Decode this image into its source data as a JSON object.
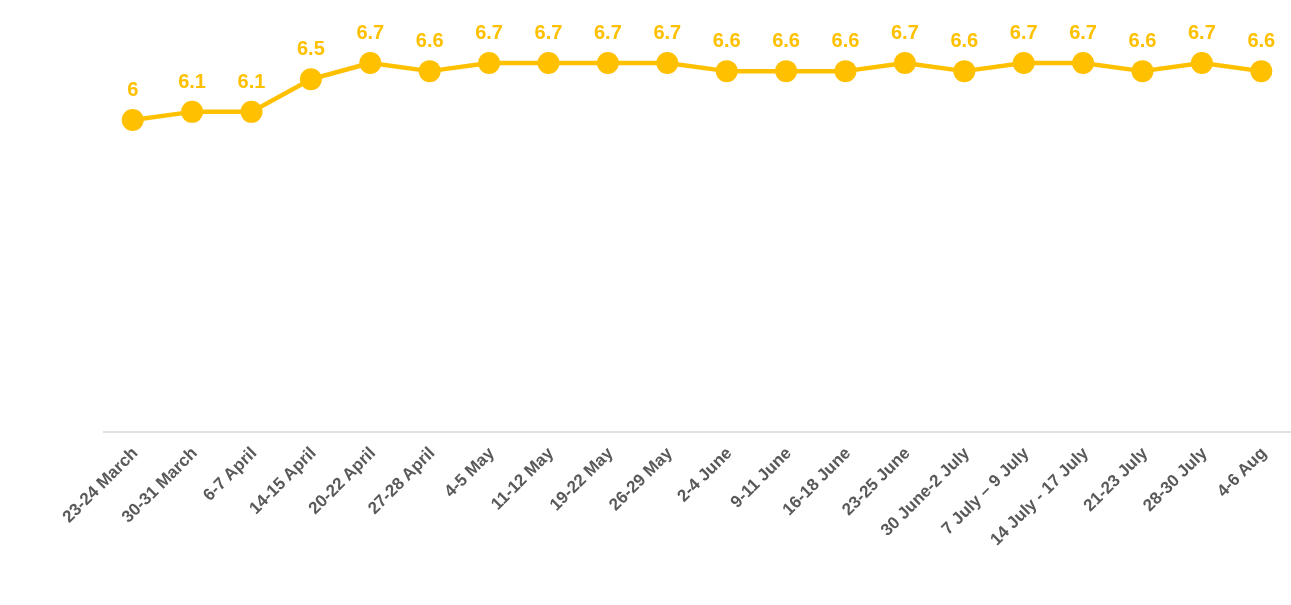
{
  "chart_data": {
    "type": "line",
    "categories": [
      "23-24 March",
      "30-31 March",
      "6-7 April",
      "14-15 April",
      "20-22 April",
      "27-28 April",
      "4-5 May",
      "11-12 May",
      "19-22 May",
      "26-29 May",
      "2-4 June",
      "9-11 June",
      "16-18 June",
      "23-25 June",
      "30 June-2 July",
      "7 July – 9 July",
      "14 July - 17 July",
      "21-23 July",
      "28-30 July",
      "4-6 Aug"
    ],
    "series": [
      {
        "color": "#ffc000",
        "values": [
          6,
          6.1,
          6.1,
          6.5,
          6.7,
          6.6,
          6.7,
          6.7,
          6.7,
          6.7,
          6.6,
          6.6,
          6.6,
          6.7,
          6.6,
          6.7,
          6.7,
          6.6,
          6.7,
          6.6
        ]
      }
    ],
    "tick_labels": "x",
    "data_labels": true,
    "marker": "circle"
  }
}
